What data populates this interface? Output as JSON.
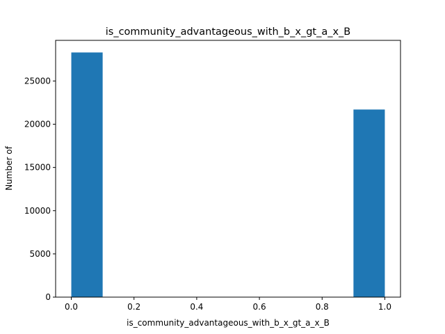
{
  "chart_data": {
    "type": "bar",
    "title": "is_community_advantageous_with_b_x_gt_a_x_B",
    "xlabel": "is_community_advantageous_with_b_x_gt_a_x_B",
    "ylabel": "Number of",
    "bins": [
      {
        "x_start": 0.0,
        "x_end": 0.1,
        "count": 28300
      },
      {
        "x_start": 0.9,
        "x_end": 1.0,
        "count": 21700
      }
    ],
    "xlim": [
      -0.05,
      1.05
    ],
    "ylim": [
      0,
      29700
    ],
    "x_ticks": [
      0.0,
      0.2,
      0.4,
      0.6,
      0.8,
      1.0
    ],
    "x_tick_labels": [
      "0.0",
      "0.2",
      "0.4",
      "0.6",
      "0.8",
      "1.0"
    ],
    "y_ticks": [
      0,
      5000,
      10000,
      15000,
      20000,
      25000
    ],
    "y_tick_labels": [
      "0",
      "5000",
      "10000",
      "15000",
      "20000",
      "25000"
    ],
    "bar_color": "#1f77b4",
    "grid": false,
    "legend": "none"
  }
}
